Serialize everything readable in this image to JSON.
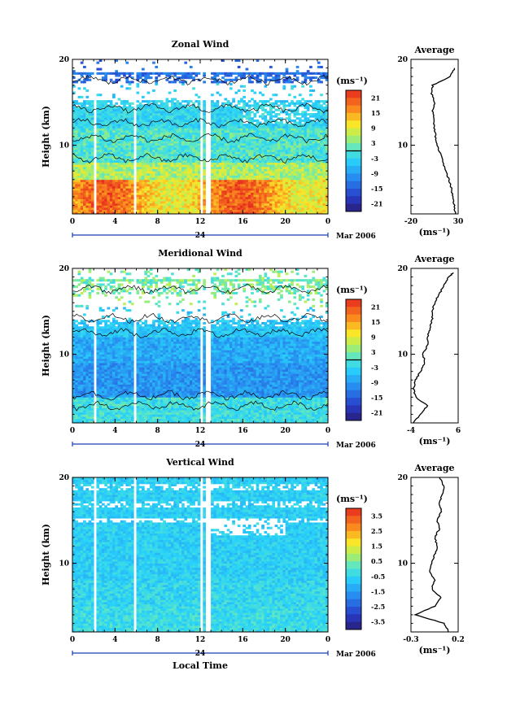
{
  "chart_data": [
    {
      "type": "heatmap",
      "title": "Zonal Wind",
      "ylabel": "Height (km)",
      "xlim": [
        0,
        24
      ],
      "ylim": [
        2,
        20
      ],
      "x_ticks": [
        "0",
        "4",
        "8",
        "12",
        "16",
        "20",
        "0"
      ],
      "y_ticks": [
        "10",
        "20"
      ],
      "date_center": "24",
      "date_right": "Mar 2006",
      "colorbar": {
        "unit": "(ms⁻¹)",
        "ticks": [
          "21",
          "15",
          "9",
          "3",
          "-3",
          "-9",
          "-15",
          "-21"
        ],
        "range": [
          -24,
          24
        ]
      },
      "profile": {
        "title": "Average",
        "unit": "(ms⁻¹)",
        "x_ticks": [
          "-20",
          "30"
        ],
        "y_ticks": [
          "10",
          "20"
        ],
        "xlim": [
          -20,
          30
        ],
        "height": [
          2,
          3,
          4,
          5,
          6,
          7,
          8,
          9,
          10,
          11,
          12,
          13,
          14,
          15,
          16,
          17,
          18,
          19
        ],
        "value": [
          27,
          26,
          24,
          23,
          20,
          17,
          14,
          11,
          8,
          6,
          5,
          4,
          3,
          5,
          2,
          3,
          22,
          26
        ]
      }
    },
    {
      "type": "heatmap",
      "title": "Meridional Wind",
      "ylabel": "Height (km)",
      "xlim": [
        0,
        24
      ],
      "ylim": [
        2,
        20
      ],
      "x_ticks": [
        "0",
        "4",
        "8",
        "12",
        "16",
        "20",
        "0"
      ],
      "y_ticks": [
        "10",
        "20"
      ],
      "date_center": "24",
      "date_right": "Mar 2006",
      "colorbar": {
        "unit": "(ms⁻¹)",
        "ticks": [
          "21",
          "15",
          "9",
          "3",
          "-3",
          "-9",
          "-15",
          "-21"
        ],
        "range": [
          -24,
          24
        ]
      },
      "profile": {
        "title": "Average",
        "unit": "(ms⁻¹)",
        "x_ticks": [
          "-4",
          "6"
        ],
        "y_ticks": [
          "10",
          "20"
        ],
        "xlim": [
          -4,
          6
        ],
        "height": [
          2,
          3,
          4,
          5,
          6,
          7,
          8,
          9,
          10,
          11,
          12,
          13,
          14,
          15,
          16,
          17,
          18,
          19,
          19.5
        ],
        "value": [
          -3.5,
          -2,
          -0.5,
          -3,
          -3.5,
          -3,
          -2,
          -1,
          -1.5,
          -0.5,
          -0.5,
          0,
          0.5,
          0.5,
          1,
          2,
          3,
          4,
          5
        ]
      }
    },
    {
      "type": "heatmap",
      "title": "Vertical Wind",
      "xlabel": "Local Time",
      "ylabel": "Height (km)",
      "xlim": [
        0,
        24
      ],
      "ylim": [
        2,
        20
      ],
      "x_ticks": [
        "0",
        "4",
        "8",
        "12",
        "16",
        "20",
        "0"
      ],
      "y_ticks": [
        "10",
        "20"
      ],
      "date_center": "24",
      "date_right": "Mar 2006",
      "colorbar": {
        "unit": "(ms⁻¹)",
        "ticks": [
          "3.5",
          "2.5",
          "1.5",
          "0.5",
          "-0.5",
          "-1.5",
          "-2.5",
          "-3.5"
        ],
        "range": [
          -4,
          4
        ]
      },
      "profile": {
        "title": "Average",
        "unit": "(ms⁻¹)",
        "x_ticks": [
          "-0.3",
          "0.2"
        ],
        "y_ticks": [
          "10",
          "20"
        ],
        "xlim": [
          -0.3,
          0.2
        ],
        "height": [
          2,
          3,
          4,
          5,
          6,
          7,
          8,
          9,
          10,
          11,
          12,
          13,
          14,
          15,
          16,
          17,
          18,
          19,
          20
        ],
        "value": [
          0.1,
          0.05,
          -0.25,
          -0.05,
          0.02,
          -0.08,
          -0.05,
          -0.1,
          -0.08,
          -0.05,
          -0.02,
          -0.05,
          0.0,
          -0.02,
          0.02,
          0.0,
          0.03,
          0.05,
          0.0
        ]
      }
    }
  ]
}
